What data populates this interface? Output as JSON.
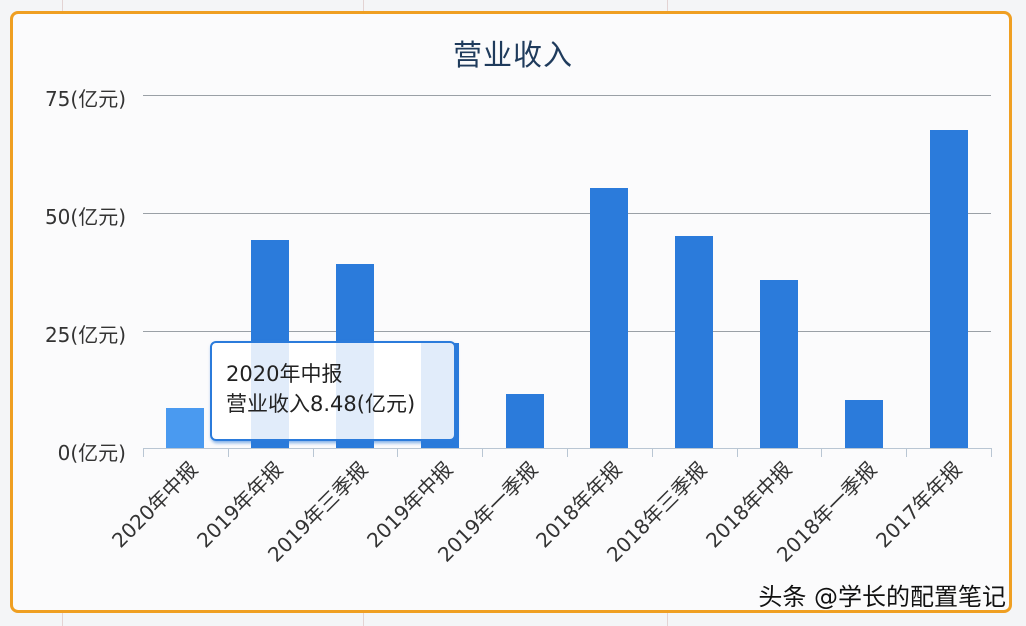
{
  "chart_data": {
    "type": "bar",
    "title": "营业收入",
    "xlabel": "",
    "ylabel": "",
    "unit": "亿元",
    "ylim": [
      0,
      75
    ],
    "yticks": [
      "0(亿元)",
      "25(亿元)",
      "50(亿元)",
      "75(亿元)"
    ],
    "grid": true,
    "legend": null,
    "categories": [
      "2020年中报",
      "2019年年报",
      "2019年三季报",
      "2019年中报",
      "2019年一季报",
      "2018年年报",
      "2018年三季报",
      "2018年中报",
      "2018年一季报",
      "2017年年报"
    ],
    "values": [
      8.48,
      44.2,
      39.1,
      22.3,
      11.5,
      55.2,
      45.0,
      35.7,
      10.2,
      67.6
    ],
    "bar_color": "#2b7bdb",
    "highlight_color": "#4a9af0"
  },
  "tooltip": {
    "line1": "2020年中报",
    "line2": "营业收入8.48(亿元)"
  },
  "watermark": "头条 @学长的配置笔记",
  "colors": {
    "frame_border": "#ef9f22",
    "title": "#1f3b5c"
  }
}
